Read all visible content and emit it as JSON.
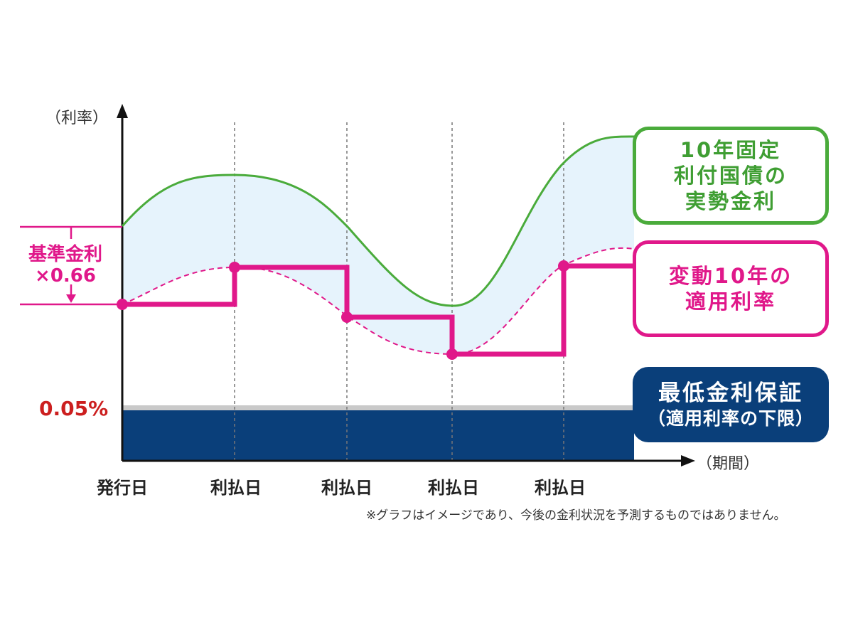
{
  "axis": {
    "y_label": "（利率）",
    "x_label": "（期間）",
    "ticks": [
      "発行日",
      "利払日",
      "利払日",
      "利払日",
      "利払日"
    ]
  },
  "labels": {
    "fixed_10y": [
      "10年固定",
      "利付国債の",
      "実勢金利"
    ],
    "floating_10y": [
      "変動10年の",
      "適用利率"
    ],
    "min_guarantee": [
      "最低金利保証",
      "（適用利率の下限）"
    ],
    "base_rate": [
      "基準金利",
      "×0.66"
    ],
    "min_rate": "0.05%"
  },
  "note": "※グラフはイメージであり、今後の金利状況を予測するものではありません。",
  "colors": {
    "fixed_line": "#4aab3b",
    "floating": "#e0188a",
    "min_band": "#0a3f7a",
    "band_fill": "#e6f3fc",
    "min_rate_text": "#cc1f1f"
  }
}
